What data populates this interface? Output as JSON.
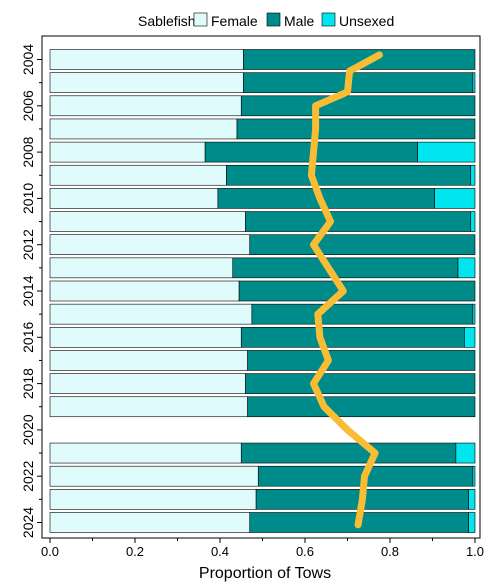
{
  "chart_data": {
    "type": "bar",
    "orientation": "horizontal",
    "stacked": true,
    "title": "",
    "xlabel": "Proportion of Tows",
    "ylabel": "",
    "xlim": [
      0,
      1
    ],
    "x_ticks": [
      "0.0",
      "0.2",
      "0.4",
      "0.6",
      "0.8",
      "1.0"
    ],
    "legend": {
      "placement": "top",
      "title": "Sablefish",
      "colors": [
        "#e0fbfb",
        "#008b8b",
        "#00e5ee"
      ]
    },
    "years": [
      2004,
      2005,
      2006,
      2007,
      2008,
      2009,
      2010,
      2011,
      2012,
      2013,
      2014,
      2015,
      2016,
      2017,
      2018,
      2019,
      2020,
      2021,
      2022,
      2023,
      2024
    ],
    "year_labels": [
      "2004",
      "2006",
      "2008",
      "2010",
      "2012",
      "2014",
      "2016",
      "2018",
      "2020",
      "2022",
      "2024"
    ],
    "series": [
      {
        "name": "Female",
        "values": [
          0.455,
          0.455,
          0.45,
          0.44,
          0.365,
          0.415,
          0.395,
          0.46,
          0.47,
          0.43,
          0.445,
          0.475,
          0.45,
          0.465,
          0.46,
          0.465,
          null,
          0.45,
          0.49,
          0.485,
          0.47
        ]
      },
      {
        "name": "Male",
        "values": [
          0.545,
          0.54,
          0.55,
          0.56,
          0.5,
          0.575,
          0.51,
          0.53,
          0.53,
          0.53,
          0.555,
          0.52,
          0.525,
          0.535,
          0.54,
          0.535,
          null,
          0.505,
          0.505,
          0.5,
          0.515
        ]
      },
      {
        "name": "Unsexed",
        "values": [
          0.0,
          0.005,
          0.0,
          0.0,
          0.135,
          0.01,
          0.095,
          0.01,
          0.0,
          0.04,
          0.0,
          0.005,
          0.025,
          0.0,
          0.0,
          0.0,
          null,
          0.045,
          0.005,
          0.015,
          0.015
        ]
      }
    ],
    "line": {
      "color": "#f8bc35",
      "points": [
        {
          "year": 2003.8,
          "value": 0.775
        },
        {
          "year": 2004.5,
          "value": 0.705
        },
        {
          "year": 2005.4,
          "value": 0.7
        },
        {
          "year": 2006.0,
          "value": 0.625
        },
        {
          "year": 2007.0,
          "value": 0.625
        },
        {
          "year": 2008.0,
          "value": 0.62
        },
        {
          "year": 2009.0,
          "value": 0.615
        },
        {
          "year": 2010.0,
          "value": 0.635
        },
        {
          "year": 2011.0,
          "value": 0.66
        },
        {
          "year": 2012.0,
          "value": 0.62
        },
        {
          "year": 2013.0,
          "value": 0.655
        },
        {
          "year": 2014.0,
          "value": 0.69
        },
        {
          "year": 2015.0,
          "value": 0.63
        },
        {
          "year": 2016.0,
          "value": 0.635
        },
        {
          "year": 2017.0,
          "value": 0.655
        },
        {
          "year": 2018.0,
          "value": 0.62
        },
        {
          "year": 2019.0,
          "value": 0.645
        },
        {
          "year": 2020.0,
          "value": 0.7
        },
        {
          "year": 2021.0,
          "value": 0.765
        },
        {
          "year": 2022.0,
          "value": 0.74
        },
        {
          "year": 2023.0,
          "value": 0.735
        },
        {
          "year": 2024.1,
          "value": 0.725
        }
      ]
    }
  }
}
